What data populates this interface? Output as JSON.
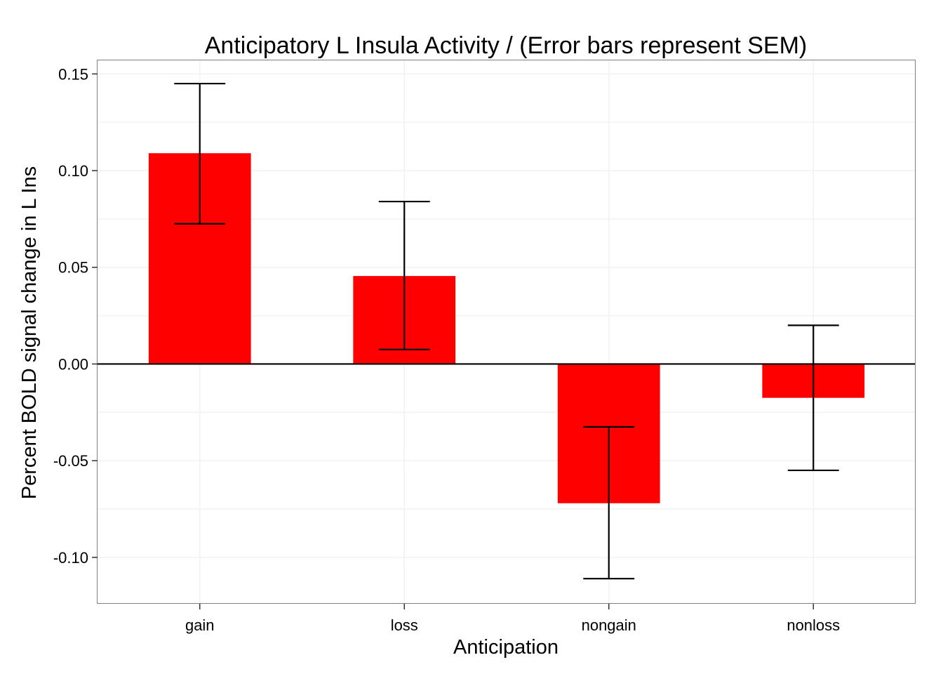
{
  "chart_data": {
    "type": "bar",
    "title": "Anticipatory L Insula Activity / (Error bars represent SEM)",
    "xlabel": "Anticipation",
    "ylabel": "Percent BOLD signal change in L Ins",
    "categories": [
      "gain",
      "loss",
      "nongain",
      "nonloss"
    ],
    "values": [
      0.109,
      0.0455,
      -0.072,
      -0.0175
    ],
    "error_low": [
      0.0725,
      0.0075,
      -0.111,
      -0.055
    ],
    "error_high": [
      0.145,
      0.084,
      -0.0325,
      0.02
    ],
    "ylim": [
      -0.124,
      0.157
    ],
    "yticks": [
      -0.1,
      -0.05,
      0.0,
      0.05,
      0.1,
      0.15
    ],
    "ytick_labels": [
      "-0.10",
      "-0.05",
      "0.00",
      "0.05",
      "0.10",
      "0.15"
    ],
    "grid": true,
    "legend": "none",
    "zero_line": true,
    "colors": {
      "bar": "#ff0000",
      "error_bar": "#000000",
      "panel_border": "#7f7f7f",
      "grid_line": "#f2f2f2",
      "zero_line": "#000000"
    }
  }
}
